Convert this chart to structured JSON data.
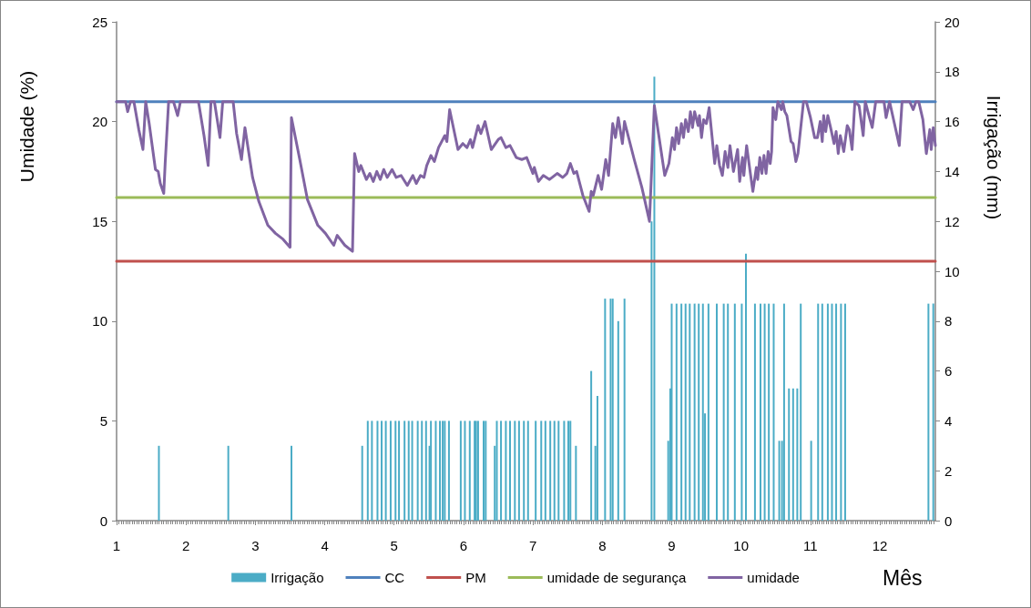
{
  "chart_data": {
    "type": "line",
    "xlabel": "Mês",
    "ylabel": "Umidade (%)",
    "y2label": "Irrigação (mm)",
    "xlim": [
      1,
      12.8
    ],
    "xticks": [
      1,
      2,
      3,
      4,
      5,
      6,
      7,
      8,
      9,
      10,
      11,
      12
    ],
    "ylim": [
      0,
      25
    ],
    "yticks": [
      0,
      5,
      10,
      15,
      20,
      25
    ],
    "y2lim": [
      0,
      20
    ],
    "y2ticks": [
      0,
      2,
      4,
      6,
      8,
      10,
      12,
      14,
      16,
      18,
      20
    ],
    "grid": false,
    "legend": "bottom",
    "marker": "none",
    "line_style": "solid",
    "series": [
      {
        "name": "Irrigação",
        "type": "bar",
        "axis": "y2",
        "color": "#4bacc6",
        "x": [
          1.61,
          2.61,
          3.52,
          4.54,
          4.62,
          4.68,
          4.76,
          4.82,
          4.88,
          4.95,
          5.02,
          5.07,
          5.15,
          5.21,
          5.26,
          5.34,
          5.4,
          5.46,
          5.51,
          5.53,
          5.6,
          5.66,
          5.7,
          5.73,
          5.79,
          5.96,
          6.02,
          6.09,
          6.16,
          6.18,
          6.21,
          6.29,
          6.32,
          6.45,
          6.48,
          6.54,
          6.61,
          6.67,
          6.74,
          6.8,
          6.87,
          6.93,
          7.04,
          7.12,
          7.18,
          7.25,
          7.31,
          7.37,
          7.45,
          7.51,
          7.54,
          7.62,
          7.84,
          7.9,
          7.93,
          8.04,
          8.12,
          8.15,
          8.23,
          8.32,
          8.71,
          8.75,
          8.95,
          8.98,
          9.0,
          9.07,
          9.14,
          9.2,
          9.26,
          9.33,
          9.39,
          9.45,
          9.48,
          9.53,
          9.65,
          9.75,
          9.81,
          9.91,
          10.01,
          10.07,
          10.2,
          10.28,
          10.34,
          10.4,
          10.47,
          10.55,
          10.59,
          10.62,
          10.69,
          10.75,
          10.81,
          10.86,
          11.01,
          11.11,
          11.17,
          11.25,
          11.31,
          11.37,
          11.44,
          11.5,
          12.7,
          12.77
        ],
        "values": [
          3,
          3,
          3,
          3,
          4,
          4,
          4,
          4,
          4,
          4,
          4,
          4,
          4,
          4,
          4,
          4,
          4,
          4,
          3,
          4,
          4,
          4,
          4,
          4,
          4,
          4,
          4,
          4,
          4,
          4,
          4,
          4,
          4,
          3,
          4,
          4,
          4,
          4,
          4,
          4,
          4,
          4,
          4,
          4,
          4,
          4,
          4,
          4,
          4,
          4,
          4,
          3,
          6,
          3,
          5,
          8.9,
          8.9,
          8.9,
          8,
          8.9,
          12,
          17.8,
          3.2,
          5.3,
          8.7,
          8.7,
          8.7,
          8.7,
          8.7,
          8.7,
          8.7,
          8.7,
          4.3,
          8.7,
          8.7,
          8.7,
          8.7,
          8.7,
          8.7,
          10.7,
          8.7,
          8.7,
          8.7,
          8.7,
          8.7,
          3.2,
          3.2,
          8.7,
          5.3,
          5.3,
          5.3,
          8.7,
          3.2,
          8.7,
          8.7,
          8.7,
          8.7,
          8.7,
          8.7,
          8.7,
          8.7,
          8.7
        ]
      },
      {
        "name": "CC",
        "color": "#4f81bd",
        "x": [
          1,
          12.8
        ],
        "values": [
          21,
          21
        ]
      },
      {
        "name": "PM",
        "color": "#c0504d",
        "x": [
          1,
          12.8
        ],
        "values": [
          13,
          13
        ]
      },
      {
        "name": "umidade de segurança",
        "color": "#9bbb59",
        "x": [
          1,
          12.8
        ],
        "values": [
          16.2,
          16.2
        ]
      },
      {
        "name": "umidade",
        "color": "#8064a2",
        "x": [
          1.0,
          1.13,
          1.16,
          1.2,
          1.25,
          1.32,
          1.38,
          1.42,
          1.47,
          1.56,
          1.6,
          1.63,
          1.68,
          1.7,
          1.75,
          1.82,
          1.88,
          1.92,
          2.18,
          2.26,
          2.32,
          2.36,
          2.41,
          2.49,
          2.53,
          2.68,
          2.73,
          2.8,
          2.85,
          2.96,
          3.05,
          3.18,
          3.29,
          3.4,
          3.5,
          3.52,
          3.64,
          3.75,
          3.9,
          4.01,
          4.13,
          4.18,
          4.29,
          4.4,
          4.43,
          4.49,
          4.52,
          4.6,
          4.65,
          4.7,
          4.75,
          4.8,
          4.85,
          4.9,
          4.97,
          5.03,
          5.1,
          5.19,
          5.27,
          5.32,
          5.38,
          5.43,
          5.47,
          5.53,
          5.58,
          5.64,
          5.73,
          5.76,
          5.8,
          5.92,
          5.99,
          6.05,
          6.1,
          6.13,
          6.21,
          6.25,
          6.31,
          6.4,
          6.5,
          6.54,
          6.61,
          6.67,
          6.76,
          6.84,
          6.91,
          7.0,
          7.02,
          7.08,
          7.15,
          7.24,
          7.35,
          7.43,
          7.49,
          7.54,
          7.59,
          7.63,
          7.72,
          7.81,
          7.84,
          7.87,
          7.94,
          7.99,
          8.05,
          8.09,
          8.15,
          8.19,
          8.23,
          8.29,
          8.32,
          8.46,
          8.57,
          8.68,
          8.75,
          8.81,
          8.9,
          8.96,
          9.01,
          9.04,
          9.07,
          9.1,
          9.14,
          9.17,
          9.2,
          9.24,
          9.27,
          9.3,
          9.33,
          9.38,
          9.4,
          9.43,
          9.46,
          9.5,
          9.54,
          9.62,
          9.65,
          9.69,
          9.73,
          9.77,
          9.81,
          9.84,
          9.89,
          9.95,
          9.98,
          10.02,
          10.04,
          10.08,
          10.13,
          10.17,
          10.22,
          10.24,
          10.27,
          10.3,
          10.33,
          10.36,
          10.39,
          10.42,
          10.44,
          10.46,
          10.5,
          10.53,
          10.58,
          10.6,
          10.63,
          10.66,
          10.72,
          10.75,
          10.79,
          10.82,
          10.9,
          10.94,
          11.0,
          11.06,
          11.1,
          11.14,
          11.17,
          11.19,
          11.22,
          11.25,
          11.29,
          11.34,
          11.37,
          11.4,
          11.43,
          11.48,
          11.53,
          11.56,
          11.6,
          11.64,
          11.7,
          11.76,
          11.79,
          11.85,
          11.89,
          11.94,
          12.06,
          12.09,
          12.14,
          12.21,
          12.28,
          12.32,
          12.43,
          12.48,
          12.52,
          12.56,
          12.62,
          12.67,
          12.72,
          12.74,
          12.77,
          12.8
        ],
        "values": [
          21.0,
          21.0,
          20.5,
          21.0,
          21.0,
          19.6,
          18.6,
          21.0,
          19.9,
          17.6,
          17.5,
          16.9,
          16.4,
          17.9,
          21.0,
          21.0,
          20.3,
          21.0,
          21.0,
          19.3,
          17.8,
          21.0,
          21.0,
          19.2,
          21.0,
          21.0,
          19.4,
          18.1,
          19.7,
          17.2,
          16.0,
          14.8,
          14.4,
          14.1,
          13.7,
          20.2,
          18.1,
          16.1,
          14.8,
          14.4,
          13.8,
          14.3,
          13.8,
          13.5,
          18.4,
          17.5,
          17.8,
          17.1,
          17.4,
          17.0,
          17.5,
          17.1,
          17.6,
          17.2,
          17.6,
          17.2,
          17.3,
          16.8,
          17.3,
          16.9,
          17.3,
          17.2,
          17.8,
          18.3,
          18.0,
          18.7,
          19.3,
          19.0,
          20.6,
          18.6,
          18.9,
          18.7,
          19.1,
          18.7,
          19.8,
          19.4,
          20.0,
          18.6,
          19.1,
          19.2,
          18.7,
          18.8,
          18.2,
          18.1,
          18.2,
          17.4,
          17.7,
          17.0,
          17.3,
          17.1,
          17.4,
          17.2,
          17.4,
          17.9,
          17.4,
          17.5,
          16.3,
          15.5,
          16.5,
          16.3,
          17.3,
          16.6,
          18.1,
          17.3,
          19.9,
          19.2,
          20.2,
          18.9,
          20.0,
          18.1,
          16.7,
          15.0,
          20.8,
          19.4,
          17.3,
          17.9,
          19.2,
          18.6,
          19.7,
          18.9,
          19.9,
          19.2,
          20.1,
          19.5,
          20.5,
          19.7,
          20.5,
          19.8,
          20.3,
          19.2,
          20.1,
          19.9,
          20.7,
          17.9,
          18.8,
          17.8,
          17.3,
          18.5,
          17.7,
          18.8,
          17.5,
          18.6,
          17.0,
          18.2,
          17.3,
          18.8,
          17.5,
          16.5,
          17.7,
          17.1,
          18.2,
          17.4,
          18.3,
          17.4,
          18.5,
          17.9,
          18.5,
          20.7,
          20.1,
          21.0,
          20.6,
          21.0,
          20.5,
          20.3,
          19.0,
          18.9,
          18.0,
          18.4,
          21.0,
          21.0,
          20.2,
          19.2,
          19.2,
          20.0,
          19.0,
          20.3,
          19.5,
          20.3,
          19.7,
          18.9,
          19.5,
          18.4,
          19.3,
          18.5,
          19.8,
          19.6,
          18.6,
          21.0,
          20.8,
          19.3,
          21.0,
          20.2,
          19.7,
          21.0,
          21.0,
          20.2,
          21.0,
          19.9,
          18.8,
          21.0,
          21.0,
          20.6,
          21.0,
          21.0,
          20.1,
          18.4,
          19.6,
          18.6,
          19.7,
          18.8
        ]
      }
    ]
  }
}
